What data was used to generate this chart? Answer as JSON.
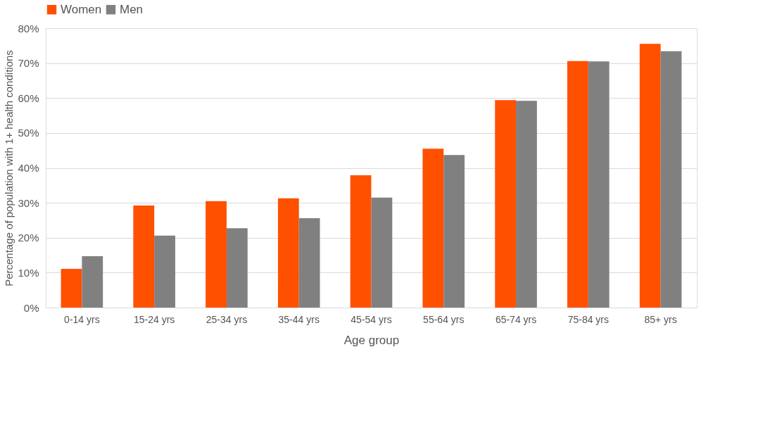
{
  "chart_data": {
    "type": "bar",
    "xlabel": "Age group",
    "ylabel": "Percentage of population with 1+ health conditions",
    "categories": [
      "0-14 yrs",
      "15-24 yrs",
      "25-34 yrs",
      "35-44 yrs",
      "45-54 yrs",
      "55-64 yrs",
      "65-74 yrs",
      "75-84 yrs",
      "85+ yrs"
    ],
    "series": [
      {
        "name": "Women",
        "color": "#ff5000",
        "values": [
          11.1,
          29.2,
          30.5,
          31.3,
          37.9,
          45.5,
          59.4,
          70.6,
          75.5
        ]
      },
      {
        "name": "Men",
        "color": "#808080",
        "values": [
          14.7,
          20.6,
          22.7,
          25.6,
          31.5,
          43.7,
          59.2,
          70.5,
          73.4
        ]
      }
    ],
    "ylim": [
      0,
      80
    ],
    "yticks": [
      {
        "value": 0,
        "label": "0%"
      },
      {
        "value": 10,
        "label": "10%"
      },
      {
        "value": 20,
        "label": "20%"
      },
      {
        "value": 30,
        "label": "30%"
      },
      {
        "value": 40,
        "label": "40%"
      },
      {
        "value": 50,
        "label": "50%"
      },
      {
        "value": 60,
        "label": "60%"
      },
      {
        "value": 70,
        "label": "70%"
      },
      {
        "value": 80,
        "label": "80%"
      }
    ],
    "grid": "y",
    "legend": "top"
  }
}
